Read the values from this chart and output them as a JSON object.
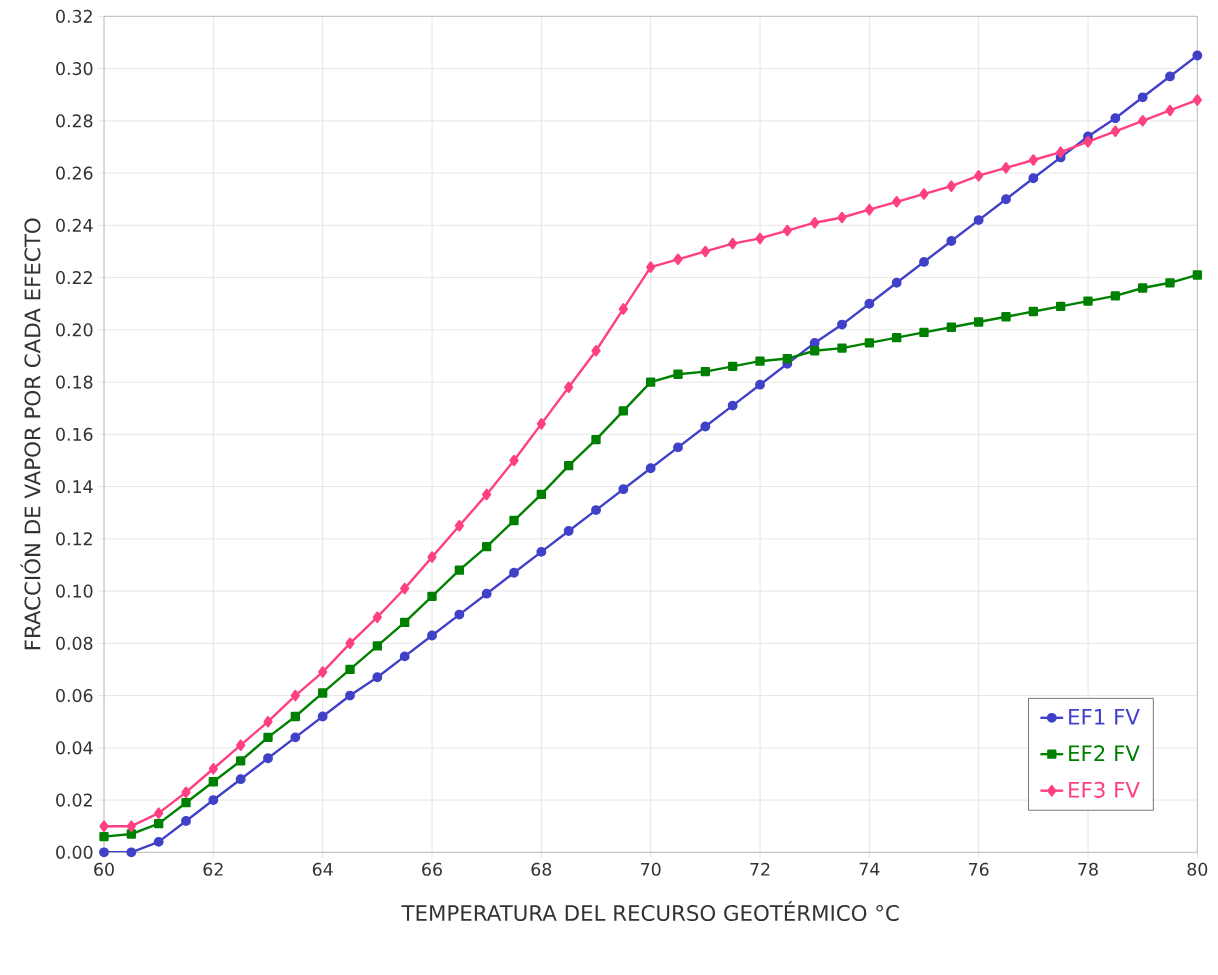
{
  "chart_data": {
    "type": "line",
    "xlabel": "TEMPERATURA DEL RECURSO GEOTÉRMICO °C",
    "ylabel": "FRACCIÓN DE VAPOR POR CADA EFECTO",
    "x": [
      60,
      60.5,
      61,
      61.5,
      62,
      62.5,
      63,
      63.5,
      64,
      64.5,
      65,
      65.5,
      66,
      66.5,
      67,
      67.5,
      68,
      68.5,
      69,
      69.5,
      70,
      70.5,
      71,
      71.5,
      72,
      72.5,
      73,
      73.5,
      74,
      74.5,
      75,
      75.5,
      76,
      76.5,
      77,
      77.5,
      78,
      78.5,
      79,
      79.5,
      80
    ],
    "series": [
      {
        "name": "EF1 FV",
        "color": "#4040c8",
        "marker": "circle",
        "values": [
          0.0,
          0.0,
          0.004,
          0.012,
          0.02,
          0.028,
          0.036,
          0.044,
          0.052,
          0.06,
          0.067,
          0.075,
          0.083,
          0.091,
          0.099,
          0.107,
          0.115,
          0.123,
          0.131,
          0.139,
          0.147,
          0.155,
          0.163,
          0.171,
          0.179,
          0.187,
          0.195,
          0.202,
          0.21,
          0.218,
          0.226,
          0.234,
          0.242,
          0.25,
          0.258,
          0.266,
          0.274,
          0.281,
          0.289,
          0.297,
          0.305
        ]
      },
      {
        "name": "EF2 FV",
        "color": "#008000",
        "marker": "square",
        "values": [
          0.006,
          0.007,
          0.011,
          0.019,
          0.027,
          0.035,
          0.044,
          0.052,
          0.061,
          0.07,
          0.079,
          0.088,
          0.098,
          0.108,
          0.117,
          0.127,
          0.137,
          0.148,
          0.158,
          0.169,
          0.18,
          0.183,
          0.184,
          0.186,
          0.188,
          0.189,
          0.192,
          0.193,
          0.195,
          0.197,
          0.199,
          0.201,
          0.203,
          0.205,
          0.207,
          0.209,
          0.211,
          0.213,
          0.216,
          0.218,
          0.221
        ]
      },
      {
        "name": "EF3 FV",
        "color": "#ff4080",
        "marker": "diamond",
        "values": [
          0.01,
          0.01,
          0.015,
          0.023,
          0.032,
          0.041,
          0.05,
          0.06,
          0.069,
          0.08,
          0.09,
          0.101,
          0.113,
          0.125,
          0.137,
          0.15,
          0.164,
          0.178,
          0.192,
          0.208,
          0.224,
          0.227,
          0.23,
          0.233,
          0.235,
          0.238,
          0.241,
          0.243,
          0.246,
          0.249,
          0.252,
          0.255,
          0.259,
          0.262,
          0.265,
          0.268,
          0.272,
          0.276,
          0.28,
          0.284,
          0.288
        ]
      }
    ],
    "xlim": [
      60,
      80
    ],
    "xticks": [
      60,
      62,
      64,
      66,
      68,
      70,
      72,
      74,
      76,
      78,
      80
    ],
    "ylim": [
      0,
      0.32
    ],
    "yticks": [
      {
        "value": 0,
        "label": "0.00"
      },
      {
        "value": 0.02,
        "label": "0.02"
      },
      {
        "value": 0.04,
        "label": "0.04"
      },
      {
        "value": 0.06,
        "label": "0.06"
      },
      {
        "value": 0.08,
        "label": "0.08"
      },
      {
        "value": 0.1,
        "label": "0.10"
      },
      {
        "value": 0.12,
        "label": "0.12"
      },
      {
        "value": 0.14,
        "label": "0.14"
      },
      {
        "value": 0.16,
        "label": "0.16"
      },
      {
        "value": 0.18,
        "label": "0.18"
      },
      {
        "value": 0.2,
        "label": "0.20"
      },
      {
        "value": 0.22,
        "label": "0.22"
      },
      {
        "value": 0.24,
        "label": "0.24"
      },
      {
        "value": 0.26,
        "label": "0.26"
      },
      {
        "value": 0.28,
        "label": "0.28"
      },
      {
        "value": 0.3,
        "label": "0.30"
      },
      {
        "value": 0.32,
        "label": "0.32"
      }
    ],
    "grid": true,
    "legend": "bottom right",
    "line_style": "solid"
  }
}
